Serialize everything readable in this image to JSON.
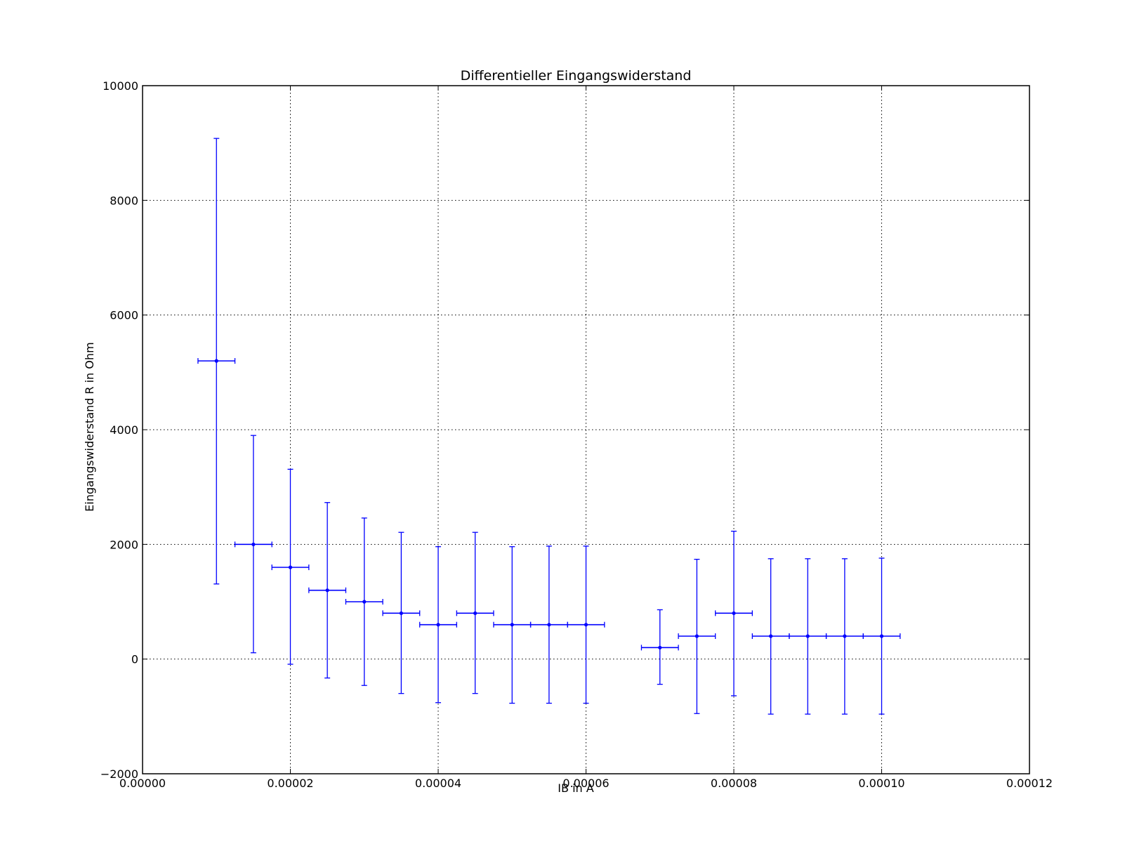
{
  "chart_data": {
    "type": "scatter",
    "subtype": "errorbar",
    "title": "Differentieller Eingangswiderstand",
    "xlabel": "IB in A",
    "ylabel": "Eingangswiderstand R in Ohm",
    "xlim": [
      0,
      0.00012
    ],
    "ylim": [
      -2000,
      10000
    ],
    "xticks": [
      "0.00000",
      "0.00002",
      "0.00004",
      "0.00006",
      "0.00008",
      "0.00010",
      "0.00012"
    ],
    "yticks": [
      "−2000",
      "0",
      "2000",
      "4000",
      "6000",
      "8000",
      "10000"
    ],
    "grid": true,
    "grid_style": "dotted",
    "color": "#0000ff",
    "x_error": 2.5e-06,
    "points": [
      {
        "x": 1e-05,
        "y": 5200,
        "y_low": 1310,
        "y_high": 9080
      },
      {
        "x": 1.5e-05,
        "y": 2000,
        "y_low": 110,
        "y_high": 3900
      },
      {
        "x": 2e-05,
        "y": 1600,
        "y_low": -90,
        "y_high": 3310
      },
      {
        "x": 2.5e-05,
        "y": 1200,
        "y_low": -330,
        "y_high": 2730
      },
      {
        "x": 3e-05,
        "y": 1000,
        "y_low": -460,
        "y_high": 2460
      },
      {
        "x": 3.5e-05,
        "y": 800,
        "y_low": -600,
        "y_high": 2210
      },
      {
        "x": 4e-05,
        "y": 600,
        "y_low": -760,
        "y_high": 1960
      },
      {
        "x": 4.5e-05,
        "y": 800,
        "y_low": -600,
        "y_high": 2210
      },
      {
        "x": 5e-05,
        "y": 600,
        "y_low": -770,
        "y_high": 1960
      },
      {
        "x": 5.5e-05,
        "y": 600,
        "y_low": -770,
        "y_high": 1970
      },
      {
        "x": 6e-05,
        "y": 600,
        "y_low": -770,
        "y_high": 1970
      },
      {
        "x": 7e-05,
        "y": 200,
        "y_low": -440,
        "y_high": 860
      },
      {
        "x": 7.5e-05,
        "y": 400,
        "y_low": -950,
        "y_high": 1740
      },
      {
        "x": 8e-05,
        "y": 800,
        "y_low": -640,
        "y_high": 2230
      },
      {
        "x": 8.5e-05,
        "y": 400,
        "y_low": -960,
        "y_high": 1750
      },
      {
        "x": 9e-05,
        "y": 400,
        "y_low": -960,
        "y_high": 1750
      },
      {
        "x": 9.5e-05,
        "y": 400,
        "y_low": -960,
        "y_high": 1750
      },
      {
        "x": 0.0001,
        "y": 400,
        "y_low": -960,
        "y_high": 1760
      }
    ]
  }
}
